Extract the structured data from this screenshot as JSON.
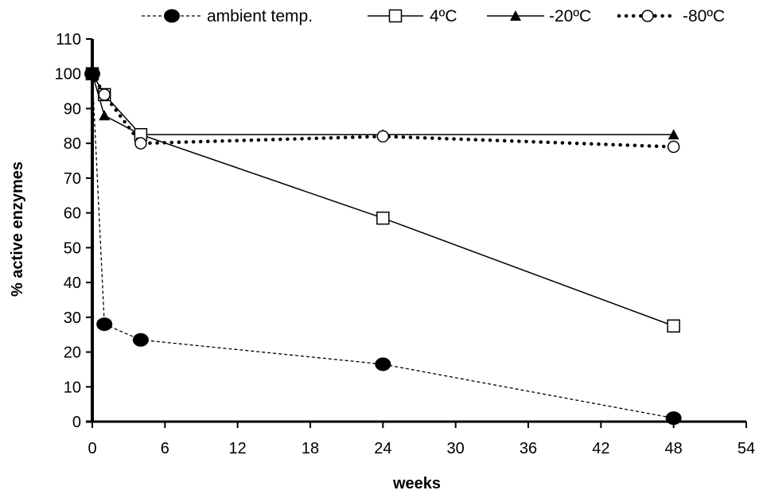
{
  "chart_data": {
    "type": "line",
    "xlabel": "weeks",
    "ylabel": "% active enzymes",
    "xlim": [
      0,
      54
    ],
    "ylim": [
      0,
      110
    ],
    "xticks": [
      0,
      6,
      12,
      18,
      24,
      30,
      36,
      42,
      48,
      54
    ],
    "yticks": [
      0,
      10,
      20,
      30,
      40,
      50,
      60,
      70,
      80,
      90,
      100,
      110
    ],
    "grid": false,
    "legend_position": "top",
    "series": [
      {
        "name": "ambient temp.",
        "marker": "filled-circle",
        "line": "dashed",
        "x": [
          0,
          1,
          4,
          24,
          48
        ],
        "y": [
          100,
          28,
          23.5,
          16.5,
          1
        ]
      },
      {
        "name": "4ºC",
        "marker": "open-square",
        "line": "solid",
        "x": [
          0,
          1,
          4,
          24,
          48
        ],
        "y": [
          100,
          94,
          82.5,
          58.5,
          27.5
        ]
      },
      {
        "name": "-20ºC",
        "marker": "filled-triangle",
        "line": "solid",
        "x": [
          0,
          1,
          4,
          24,
          48
        ],
        "y": [
          100,
          88,
          82.5,
          82.5,
          82.5
        ]
      },
      {
        "name": "-80ºC",
        "marker": "open-circle",
        "line": "dotted",
        "x": [
          0,
          1,
          4,
          24,
          48
        ],
        "y": [
          100,
          94,
          80,
          82,
          79
        ]
      }
    ]
  }
}
